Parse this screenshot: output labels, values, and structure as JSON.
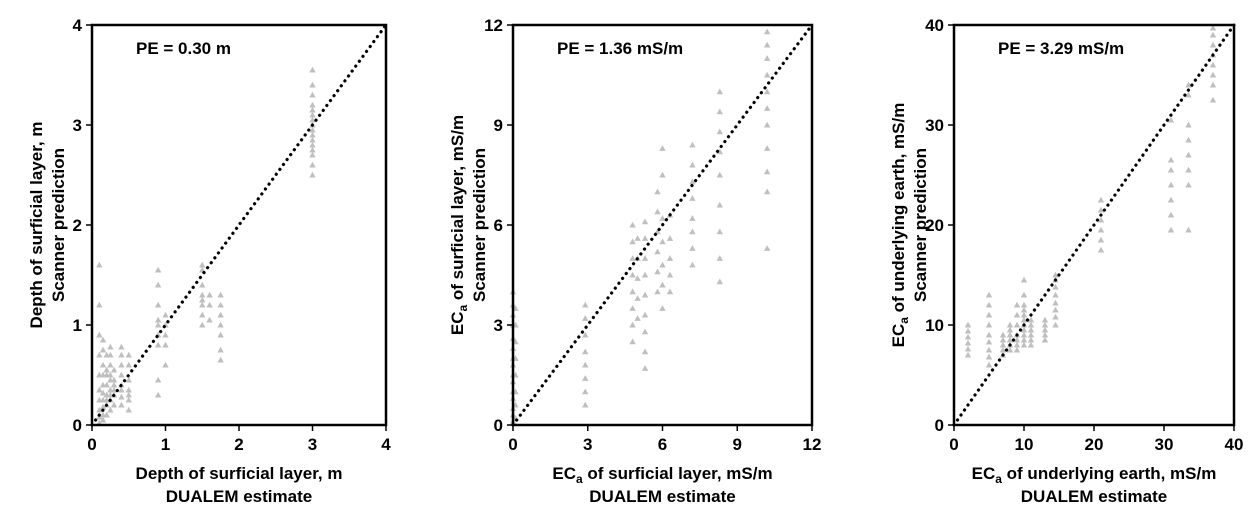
{
  "chart_data": [
    {
      "type": "scatter",
      "annotation": "PE = 0.30 m",
      "xlabel": [
        "Depth of surficial layer, m",
        "DUALEM estimate"
      ],
      "ylabel": [
        "Depth of surficial layer, m",
        "Scanner prediction"
      ],
      "xlim": [
        0,
        4
      ],
      "ylim": [
        0,
        4
      ],
      "xticks": [
        "0",
        "1",
        "2",
        "3",
        "4"
      ],
      "yticks": [
        "0",
        "1",
        "2",
        "3",
        "4"
      ],
      "reference_line": "1:1",
      "marker": "triangle",
      "marker_color": "#bfbfbf",
      "grid": false,
      "groups": [
        {
          "x": 0.1,
          "y": [
            0.02,
            0.08,
            0.15,
            0.25,
            0.35,
            0.5,
            0.7,
            0.9,
            1.2,
            1.6
          ]
        },
        {
          "x": 0.15,
          "y": [
            0.05,
            0.1,
            0.18,
            0.25,
            0.32,
            0.4,
            0.5,
            0.6,
            0.75,
            0.85
          ]
        },
        {
          "x": 0.2,
          "y": [
            0.1,
            0.2,
            0.25,
            0.3,
            0.4,
            0.5,
            0.55,
            0.7
          ]
        },
        {
          "x": 0.25,
          "y": [
            0.15,
            0.25,
            0.3,
            0.35,
            0.45,
            0.5,
            0.6,
            0.7,
            0.78
          ]
        },
        {
          "x": 0.3,
          "y": [
            0.2,
            0.3,
            0.35,
            0.4,
            0.45,
            0.55
          ]
        },
        {
          "x": 0.4,
          "y": [
            0.2,
            0.28,
            0.35,
            0.4,
            0.5,
            0.6,
            0.7,
            0.78
          ]
        },
        {
          "x": 0.5,
          "y": [
            0.15,
            0.25,
            0.3,
            0.35,
            0.45,
            0.6,
            0.7
          ]
        },
        {
          "x": 0.9,
          "y": [
            0.3,
            0.45,
            0.8,
            0.9,
            1.0,
            1.05,
            1.2,
            1.4,
            1.55
          ]
        },
        {
          "x": 1.0,
          "y": [
            0.6,
            0.8,
            0.9,
            1.0,
            1.1
          ]
        },
        {
          "x": 1.5,
          "y": [
            1.0,
            1.1,
            1.2,
            1.25,
            1.3,
            1.4,
            1.55,
            1.6
          ]
        },
        {
          "x": 1.6,
          "y": [
            1.05,
            1.2,
            1.3
          ]
        },
        {
          "x": 1.75,
          "y": [
            0.65,
            0.75,
            0.9,
            1.0,
            1.1,
            1.2,
            1.3
          ]
        },
        {
          "x": 3.0,
          "y": [
            2.5,
            2.6,
            2.7,
            2.75,
            2.8,
            2.85,
            2.9,
            2.95,
            3.0,
            3.05,
            3.1,
            3.15,
            3.2,
            3.3,
            3.4,
            3.55
          ]
        }
      ]
    },
    {
      "type": "scatter",
      "annotation": "PE = 1.36 mS/m",
      "xlabel": [
        "EC",
        "a",
        " of surficial layer, mS/m",
        "DUALEM estimate"
      ],
      "ylabel": [
        "EC",
        "a",
        " of surficial layer, mS/m",
        "Scanner prediction"
      ],
      "xlim": [
        0,
        12
      ],
      "ylim": [
        0,
        12
      ],
      "xticks": [
        "0",
        "3",
        "6",
        "9",
        "12"
      ],
      "yticks": [
        "0",
        "3",
        "6",
        "9",
        "12"
      ],
      "reference_line": "1:1",
      "marker": "triangle",
      "marker_color": "#bfbfbf",
      "grid": false,
      "groups": [
        {
          "x": 0.0,
          "y": [
            0.1,
            0.3,
            0.5,
            0.8,
            1.0,
            1.3,
            1.5,
            1.8,
            2.0,
            2.3,
            2.6,
            3.0,
            3.3,
            3.6,
            4.0
          ]
        },
        {
          "x": 0.1,
          "y": [
            0.2,
            0.6,
            1.0,
            1.5,
            2.0,
            2.5,
            3.0,
            3.5
          ]
        },
        {
          "x": 2.9,
          "y": [
            0.6,
            1.0,
            1.4,
            1.8,
            2.2,
            2.7,
            3.2,
            3.6
          ]
        },
        {
          "x": 4.8,
          "y": [
            2.5,
            3.0,
            3.5,
            4.0,
            4.5,
            5.0,
            5.5,
            6.0
          ]
        },
        {
          "x": 5.0,
          "y": [
            3.2,
            3.8,
            4.4,
            5.0,
            5.6
          ]
        },
        {
          "x": 5.3,
          "y": [
            1.7,
            2.2,
            2.8,
            3.3,
            3.9,
            4.5,
            5.0,
            5.6,
            6.1
          ]
        },
        {
          "x": 5.8,
          "y": [
            4.0,
            4.6,
            5.2,
            5.8,
            6.4,
            7.0
          ]
        },
        {
          "x": 6.0,
          "y": [
            3.5,
            4.2,
            4.8,
            5.5,
            6.2,
            7.5,
            8.3
          ]
        },
        {
          "x": 6.3,
          "y": [
            4.0,
            4.5,
            5.0,
            5.6,
            6.3
          ]
        },
        {
          "x": 7.2,
          "y": [
            4.8,
            5.3,
            5.8,
            6.2,
            6.8,
            7.3,
            7.8,
            8.4
          ]
        },
        {
          "x": 8.3,
          "y": [
            4.3,
            5.0,
            5.8,
            6.6,
            7.5,
            8.2,
            8.8,
            9.4,
            10.0
          ]
        },
        {
          "x": 10.2,
          "y": [
            5.3,
            7.0,
            7.6,
            8.3,
            9.0,
            9.5,
            10.0,
            10.5,
            11.0,
            11.4,
            11.8
          ]
        }
      ]
    },
    {
      "type": "scatter",
      "annotation": "PE = 3.29 mS/m",
      "xlabel": [
        "EC",
        "a",
        " of underlying earth, mS/m",
        "DUALEM estimate"
      ],
      "ylabel": [
        "EC",
        "a",
        " of underlying earth, mS/m",
        "Scanner prediction"
      ],
      "xlim": [
        0,
        40
      ],
      "ylim": [
        0,
        40
      ],
      "xticks": [
        "0",
        "10",
        "20",
        "30",
        "40"
      ],
      "yticks": [
        "0",
        "10",
        "20",
        "30",
        "40"
      ],
      "reference_line": "1:1",
      "marker": "triangle",
      "marker_color": "#bfbfbf",
      "grid": false,
      "groups": [
        {
          "x": 2.0,
          "y": [
            7.0,
            7.6,
            8.2,
            8.8,
            9.4,
            10.0
          ]
        },
        {
          "x": 5.0,
          "y": [
            6.0,
            6.8,
            7.5,
            8.3,
            9.0,
            10.0,
            11.0,
            12.0,
            13.0
          ]
        },
        {
          "x": 7.0,
          "y": [
            7.0,
            7.5,
            8.0,
            8.5,
            9.0
          ]
        },
        {
          "x": 8.0,
          "y": [
            7.5,
            8.0,
            8.5,
            9.0,
            9.5,
            10.0
          ]
        },
        {
          "x": 9.0,
          "y": [
            7.5,
            8.0,
            8.5,
            9.0,
            10.0,
            11.0,
            12.0
          ]
        },
        {
          "x": 10.0,
          "y": [
            8.0,
            8.5,
            9.0,
            9.5,
            10.0,
            10.5,
            11.0,
            11.5,
            12.0,
            13.0,
            14.5
          ]
        },
        {
          "x": 11.0,
          "y": [
            8.0,
            8.5,
            9.0,
            9.5,
            10.0,
            10.5
          ]
        },
        {
          "x": 13.0,
          "y": [
            8.5,
            9.0,
            9.5,
            10.0,
            10.5
          ]
        },
        {
          "x": 14.5,
          "y": [
            10.0,
            10.8,
            11.5,
            12.2,
            13.0,
            13.8,
            14.5,
            15.0
          ]
        },
        {
          "x": 21.0,
          "y": [
            17.5,
            18.5,
            19.5,
            20.5,
            21.5,
            22.5
          ]
        },
        {
          "x": 31.0,
          "y": [
            19.5,
            21.0,
            22.5,
            24.0,
            25.5,
            26.5,
            30.5
          ]
        },
        {
          "x": 33.5,
          "y": [
            19.5,
            24.0,
            25.5,
            27.0,
            28.5,
            30.0,
            33.0,
            34.0
          ]
        },
        {
          "x": 37.0,
          "y": [
            32.5,
            34.0,
            35.0,
            36.0,
            37.0,
            38.0,
            39.0,
            39.7
          ]
        }
      ]
    }
  ]
}
